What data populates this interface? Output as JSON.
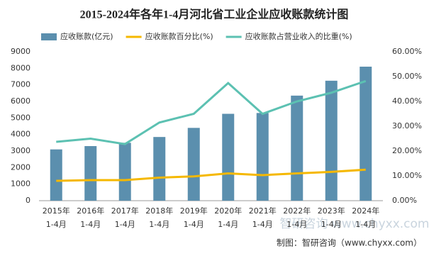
{
  "chart_data": {
    "type": "bar-line",
    "title": "2015-2024年各年1-4月河北省工业企业应收账款统计图",
    "categories": [
      [
        "2015年",
        "1-4月"
      ],
      [
        "2016年",
        "1-4月"
      ],
      [
        "2017年",
        "1-4月"
      ],
      [
        "2018年",
        "1-4月"
      ],
      [
        "2019年",
        "1-4月"
      ],
      [
        "2020年",
        "1-4月"
      ],
      [
        "2021年",
        "1-4月"
      ],
      [
        "2022年",
        "1-4月"
      ],
      [
        "2023年",
        "1-4月"
      ],
      [
        "2024年",
        "1-4月"
      ]
    ],
    "series": [
      {
        "name": "应收账款(亿元)",
        "type": "bar",
        "color": "#5b8fae",
        "values": [
          3100,
          3300,
          3500,
          3850,
          4400,
          5250,
          5300,
          6350,
          7250,
          8100
        ]
      },
      {
        "name": "应收账款百分比(%)",
        "type": "line",
        "axis": "y2",
        "color": "#f5b800",
        "values": [
          8.0,
          8.3,
          8.3,
          9.3,
          9.8,
          11.0,
          10.3,
          11.0,
          11.6,
          12.5
        ]
      },
      {
        "name": "应收账款占营业收入的比重(%)",
        "type": "line",
        "axis": "y2",
        "color": "#5cc1b2",
        "values": [
          23.7,
          25.0,
          22.8,
          31.5,
          35.0,
          47.4,
          35.0,
          40.0,
          43.5,
          48.2
        ]
      }
    ],
    "ylim": [
      0,
      9000
    ],
    "yticks": [
      0,
      1000,
      2000,
      3000,
      4000,
      5000,
      6000,
      7000,
      8000,
      9000
    ],
    "y2lim": [
      0,
      60
    ],
    "y2ticks": [
      {
        "value": 0,
        "label": "0.00%"
      },
      {
        "value": 10,
        "label": "10.00%"
      },
      {
        "value": 20,
        "label": "20.00%"
      },
      {
        "value": 30,
        "label": "30.00%"
      },
      {
        "value": 40,
        "label": "40.00%"
      },
      {
        "value": 50,
        "label": "50.00%"
      },
      {
        "value": 60,
        "label": "60.00%"
      }
    ],
    "source": "制图：智研咨询（www.chyxx.com）",
    "watermark": "智研咨询 www.chyxx.com"
  }
}
